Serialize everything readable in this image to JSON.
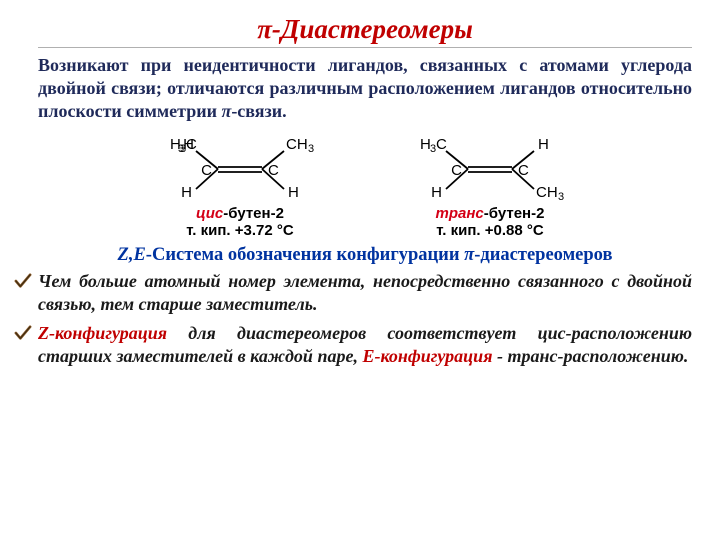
{
  "colors": {
    "title_red": "#c00000",
    "intro_navy": "#1f2a5a",
    "subtitle_blue": "#0033a0",
    "body_black": "#1a1a1a",
    "rule_gray": "#b0b0b0",
    "mol_cis_red": "#d40016",
    "mol_trans_red": "#d40016",
    "bg": "#ffffff",
    "check_brown": "#8a5a2a",
    "check_dark": "#3a2a10"
  },
  "title": "π-Диастереомеры",
  "intro_html": "Возникают при неидентичности лигандов, связанных с атомами углерода двойной связи; отличаются различным расположением лигандов относительно плоскости симметрии <span class=\"pi\">π</span>-связи.",
  "subtitle_html": "<span class=\"ze\">Z,E</span>-Система обозначения конфигурации <span class=\"pi\">π</span>-диастереомеров",
  "molecules": {
    "left": {
      "prefix": "цис",
      "name": "-бутен-2",
      "bp": "т. кип. +3.72 °С",
      "top_left": "H₃C",
      "top_right": "CH₃",
      "bot_left": "H",
      "bot_right": "H"
    },
    "right": {
      "prefix": "транс",
      "name": "-бутен-2",
      "bp": "т. кип. +0.88 °С",
      "top_left": "H₃C",
      "top_right": "H",
      "bot_left": "H",
      "bot_right": "CH₃"
    }
  },
  "bullets": [
    "Чем больше атомный номер элемента, непосредственно связанного с двойной связью, тем старше заместитель.",
    "<span class=\"red\">Z-конфигурация</span> для диастереомеров соответствует <span class=\"cis\">цис</span>-расположению старших заместителей в каждой паре, <span class=\"red\">Е-конфигурация</span> - <span class=\"trans\">транс</span>-расположению."
  ]
}
